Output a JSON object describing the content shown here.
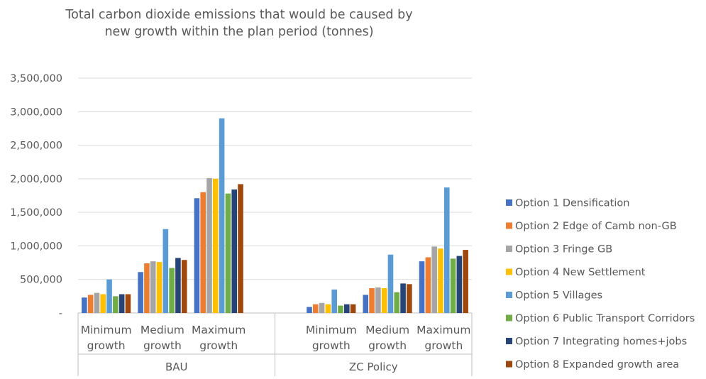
{
  "chart_data": {
    "type": "bar",
    "title": [
      "Total carbon dioxide emissions that would be caused by",
      "new growth within the plan period (tonnes)"
    ],
    "ylim": [
      0,
      3500000
    ],
    "y_ticks": [
      "-",
      "500,000",
      "1,000,000",
      "1,500,000",
      "2,000,000",
      "2,500,000",
      "3,000,000",
      "3,500,000"
    ],
    "y_tick_values": [
      0,
      500000,
      1000000,
      1500000,
      2000000,
      2500000,
      3000000,
      3500000
    ],
    "grid": true,
    "legend_position": "right",
    "groups": [
      {
        "label": "BAU",
        "categories": [
          [
            "Minimum",
            "growth"
          ],
          [
            "Medium",
            "growth"
          ],
          [
            "Maximum",
            "growth"
          ]
        ]
      },
      {
        "label": "ZC Policy",
        "categories": [
          [
            "Minimum",
            "growth"
          ],
          [
            "Medium",
            "growth"
          ],
          [
            "Maximum",
            "growth"
          ]
        ]
      }
    ],
    "series": [
      {
        "name": "Option 1 Densification",
        "color": "#4472C4",
        "values": [
          230000,
          610000,
          1710000,
          90000,
          270000,
          770000
        ]
      },
      {
        "name": "Option 2 Edge of Camb non-GB",
        "color": "#ED7D31",
        "values": [
          270000,
          740000,
          1800000,
          130000,
          370000,
          830000
        ]
      },
      {
        "name": "Option 3 Fringe GB",
        "color": "#A5A5A5",
        "values": [
          300000,
          770000,
          2010000,
          150000,
          380000,
          990000
        ]
      },
      {
        "name": "Option 4 New Settlement",
        "color": "#FFC000",
        "values": [
          280000,
          760000,
          2000000,
          130000,
          370000,
          960000
        ]
      },
      {
        "name": "Option 5 Villages",
        "color": "#5B9BD5",
        "values": [
          500000,
          1250000,
          2900000,
          350000,
          870000,
          1870000
        ]
      },
      {
        "name": "Option 6 Public Transport Corridors",
        "color": "#70AD47",
        "values": [
          250000,
          670000,
          1780000,
          110000,
          310000,
          810000
        ]
      },
      {
        "name": "Option 7 Integrating homes+jobs",
        "color": "#264478",
        "values": [
          280000,
          820000,
          1840000,
          130000,
          440000,
          850000
        ]
      },
      {
        "name": "Option 8 Expanded growth area",
        "color": "#9E480E",
        "values": [
          280000,
          790000,
          1920000,
          130000,
          430000,
          940000
        ]
      }
    ]
  }
}
